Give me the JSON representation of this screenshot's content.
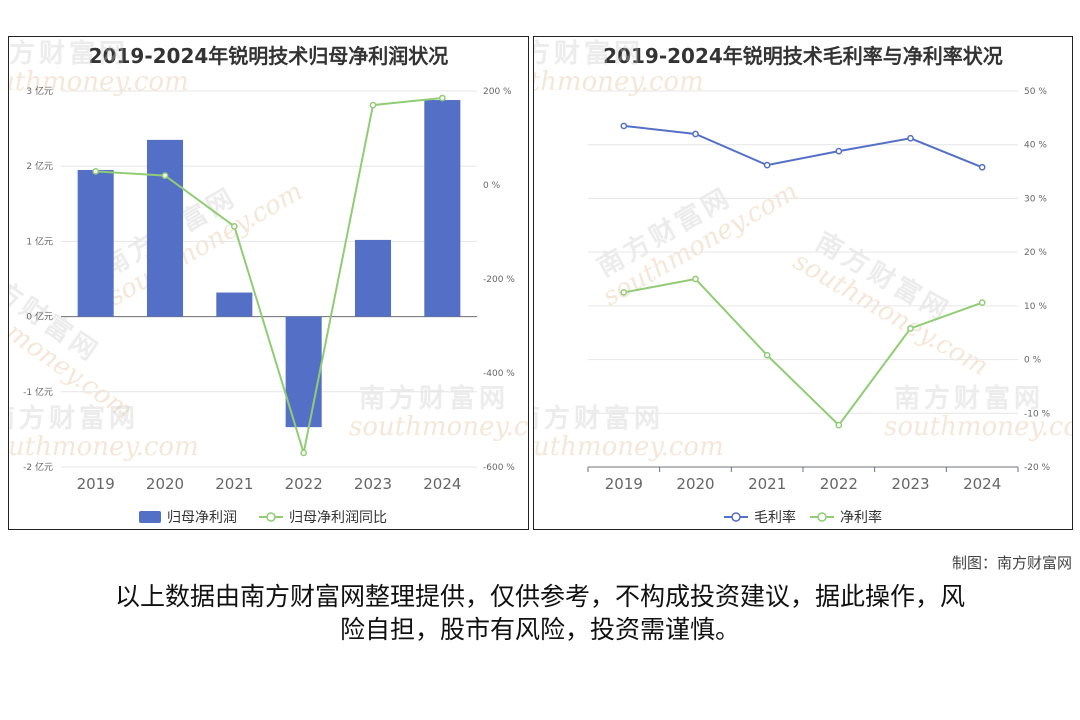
{
  "chart_data": [
    {
      "type": "bar",
      "title": "2019-2024年锐明技术归母净利润状况",
      "categories": [
        "2019",
        "2020",
        "2021",
        "2022",
        "2023",
        "2024"
      ],
      "series": [
        {
          "name": "归母净利润",
          "type": "bar",
          "axis": "left",
          "unit": "亿元",
          "values": [
            1.95,
            2.35,
            0.32,
            -1.47,
            1.02,
            2.88
          ],
          "color": "#5470c6"
        },
        {
          "name": "归母净利润同比",
          "type": "line",
          "axis": "right",
          "unit": "%",
          "values": [
            29,
            20,
            -88,
            -570,
            170,
            185
          ],
          "color": "#91cc75"
        }
      ],
      "y_left": {
        "min": -2,
        "max": 3,
        "ticks": [
          3,
          2,
          1,
          0,
          -1,
          -2
        ],
        "tick_labels": [
          "3 亿元",
          "2 亿元",
          "1 亿元",
          "0 亿元",
          "-1 亿元",
          "-2 亿元"
        ]
      },
      "y_right": {
        "min": -600,
        "max": 200,
        "ticks": [
          200,
          0,
          -200,
          -400,
          -600
        ],
        "tick_labels": [
          "200 %",
          "0 %",
          "-200 %",
          "-400 %",
          "-600 %"
        ]
      },
      "legend": {
        "position": "bottom",
        "items": [
          "归母净利润",
          "归母净利润同比"
        ]
      },
      "grid": true
    },
    {
      "type": "line",
      "title": "2019-2024年锐明技术毛利率与净利率状况",
      "categories": [
        "2019",
        "2020",
        "2021",
        "2022",
        "2023",
        "2024"
      ],
      "series": [
        {
          "name": "毛利率",
          "values": [
            43.5,
            42.0,
            36.2,
            38.8,
            41.2,
            35.8
          ],
          "color": "#5470c6"
        },
        {
          "name": "净利率",
          "values": [
            12.5,
            15.0,
            0.8,
            -12.2,
            5.8,
            10.6
          ],
          "color": "#91cc75"
        }
      ],
      "y_right": {
        "min": -20,
        "max": 50,
        "ticks": [
          50,
          40,
          30,
          20,
          10,
          0,
          -10,
          -20
        ],
        "tick_labels": [
          "50 %",
          "40 %",
          "30 %",
          "20 %",
          "10 %",
          "0 %",
          "-10 %",
          "-20 %"
        ]
      },
      "legend": {
        "position": "bottom",
        "items": [
          "毛利率",
          "净利率"
        ]
      },
      "grid": true
    }
  ],
  "credit": "制图：南方财富网",
  "disclaimer_line1": "以上数据由南方财富网整理提供，仅供参考，不构成投资建议，据此操作，风",
  "disclaimer_line2": "险自担，股市有风险，投资需谨慎。",
  "watermark": {
    "cn": "南方财富网",
    "en": "southmoney.com"
  }
}
